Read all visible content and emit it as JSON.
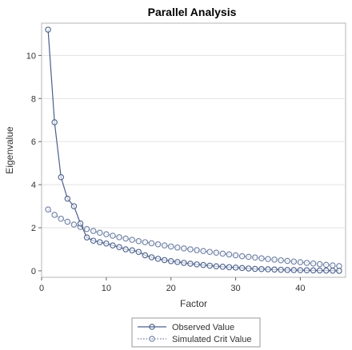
{
  "chart_data": {
    "type": "line",
    "title": "Parallel Analysis",
    "xlabel": "Factor",
    "ylabel": "Eigenvalue",
    "xlim": [
      0,
      47
    ],
    "ylim": [
      -0.3,
      11.5
    ],
    "xticks": [
      0,
      10,
      20,
      30,
      40
    ],
    "yticks": [
      0,
      2,
      4,
      6,
      8,
      10
    ],
    "grid": "horizontal",
    "legend_position": "bottom",
    "x": [
      1,
      2,
      3,
      4,
      5,
      6,
      7,
      8,
      9,
      10,
      11,
      12,
      13,
      14,
      15,
      16,
      17,
      18,
      19,
      20,
      21,
      22,
      23,
      24,
      25,
      26,
      27,
      28,
      29,
      30,
      31,
      32,
      33,
      34,
      35,
      36,
      37,
      38,
      39,
      40,
      41,
      42,
      43,
      44,
      45,
      46
    ],
    "series": [
      {
        "name": "Observed Value",
        "color": "#4a5f8a",
        "line_style": "solid",
        "values": [
          11.2,
          6.9,
          4.35,
          3.35,
          3.0,
          2.2,
          1.55,
          1.4,
          1.33,
          1.27,
          1.18,
          1.1,
          1.0,
          0.95,
          0.88,
          0.72,
          0.63,
          0.56,
          0.5,
          0.45,
          0.41,
          0.37,
          0.33,
          0.3,
          0.27,
          0.24,
          0.21,
          0.19,
          0.17,
          0.15,
          0.13,
          0.11,
          0.09,
          0.08,
          0.07,
          0.06,
          0.05,
          0.04,
          0.035,
          0.03,
          0.025,
          0.02,
          0.015,
          0.01,
          0.005,
          0.0
        ]
      },
      {
        "name": "Simulated Crit Value",
        "color": "#6d7fa3",
        "line_style": "dotted",
        "values": [
          2.85,
          2.6,
          2.42,
          2.28,
          2.15,
          2.04,
          1.94,
          1.85,
          1.77,
          1.7,
          1.63,
          1.56,
          1.5,
          1.44,
          1.38,
          1.33,
          1.28,
          1.23,
          1.18,
          1.13,
          1.08,
          1.04,
          1.0,
          0.96,
          0.92,
          0.88,
          0.84,
          0.8,
          0.76,
          0.72,
          0.68,
          0.65,
          0.62,
          0.58,
          0.55,
          0.52,
          0.49,
          0.46,
          0.43,
          0.4,
          0.37,
          0.34,
          0.31,
          0.28,
          0.25,
          0.22
        ]
      }
    ]
  }
}
